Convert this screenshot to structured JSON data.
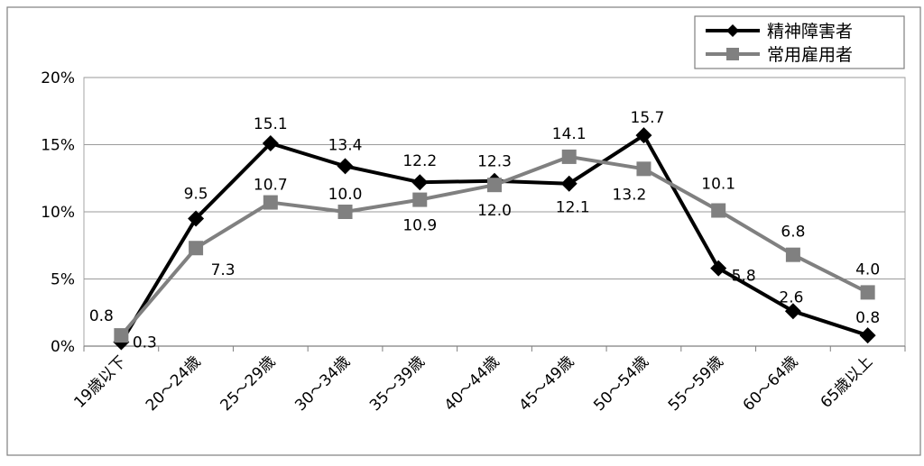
{
  "chart_data": {
    "type": "line",
    "categories": [
      "19歳以下",
      "20～24歳",
      "25～29歳",
      "30～34歳",
      "35～39歳",
      "40～44歳",
      "45～49歳",
      "50～54歳",
      "55～59歳",
      "60～64歳",
      "65歳以上"
    ],
    "series": [
      {
        "name": "精神障害者",
        "values": [
          0.3,
          9.5,
          15.1,
          13.4,
          12.2,
          12.3,
          12.1,
          15.7,
          5.8,
          2.6,
          0.8
        ],
        "labels": [
          "0.3",
          "9.5",
          "15.1",
          "13.4",
          "12.2",
          "12.3",
          "12.1",
          "15.7",
          "5.8",
          "2.6",
          "0.8"
        ],
        "color": "#000000",
        "marker": "diamond"
      },
      {
        "name": "常用雇用者",
        "values": [
          0.8,
          7.3,
          10.7,
          10.0,
          10.9,
          12.0,
          14.1,
          13.2,
          10.1,
          6.8,
          4.0
        ],
        "labels": [
          "0.8",
          "7.3",
          "10.7",
          "10.0",
          "10.9",
          "12.0",
          "14.1",
          "13.2",
          "10.1",
          "6.8",
          "4.0"
        ],
        "color": "#808080",
        "marker": "square"
      }
    ],
    "yticks": [
      "0%",
      "5%",
      "10%",
      "15%",
      "20%"
    ],
    "ylim": [
      0,
      20
    ],
    "grid": true,
    "legend_position": "top-right",
    "title": "",
    "xlabel": "",
    "ylabel": ""
  }
}
